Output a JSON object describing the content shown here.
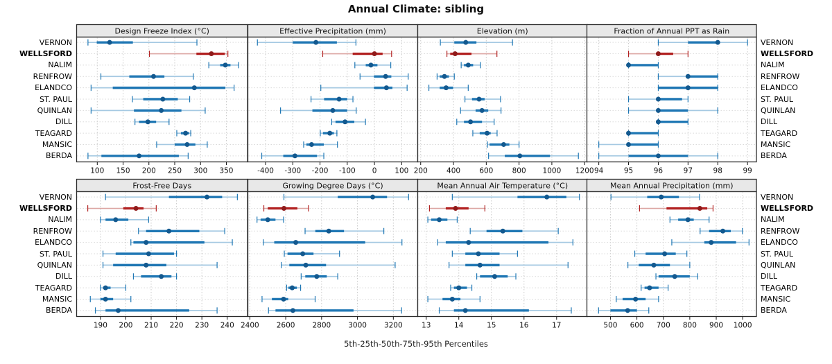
{
  "title": "Annual Climate: sibling",
  "caption": "5th-25th-50th-75th-95th Percentiles",
  "colors": {
    "blue": "#1f77b4",
    "blue_light": "#a5c9e2",
    "blue_dot": "#13598f",
    "red": "#b22222",
    "red_light": "#dba3a0",
    "red_dot": "#8f1a1a",
    "header_bg": "#e8e8e8",
    "panel_border": "#2b2b2b",
    "grid_v": "#c9c9c9",
    "grid_h": "#d9d9d9",
    "tick_text": "#111111"
  },
  "chart_data": {
    "type": "dot-whisker-percentiles",
    "percentiles": [
      5,
      25,
      50,
      75,
      95
    ],
    "highlight_row": "WELLSFORD",
    "rows": [
      "VERNON",
      "WELLSFORD",
      "NALIM",
      "RENFROW",
      "ELANDCO",
      "ST. PAUL",
      "QUINLAN",
      "DILL",
      "TEAGARD",
      "MANSIC",
      "BERDA"
    ],
    "panels": [
      {
        "title": "Design Freeze Index (°C)",
        "xlim": [
          60,
          391
        ],
        "ticks": [
          100,
          150,
          200,
          250,
          300,
          350
        ],
        "values": [
          [
            82,
            99,
            124,
            169,
            293
          ],
          [
            201,
            292,
            321,
            347,
            353
          ],
          [
            316,
            338,
            348,
            358,
            374
          ],
          [
            107,
            162,
            209,
            230,
            286
          ],
          [
            88,
            130,
            288,
            348,
            365
          ],
          [
            168,
            189,
            227,
            256,
            279
          ],
          [
            88,
            171,
            224,
            263,
            309
          ],
          [
            173,
            181,
            198,
            214,
            239
          ],
          [
            254,
            262,
            271,
            278,
            281
          ],
          [
            215,
            250,
            274,
            290,
            313
          ],
          [
            82,
            108,
            181,
            258,
            276
          ]
        ]
      },
      {
        "title": "Effective Precipitation (mm)",
        "xlim": [
          -465,
          159
        ],
        "ticks": [
          -400,
          -300,
          -200,
          -100,
          0,
          100
        ],
        "values": [
          [
            -430,
            -300,
            -215,
            -138,
            -68
          ],
          [
            -190,
            -80,
            0,
            30,
            63
          ],
          [
            -72,
            -32,
            -13,
            11,
            60
          ],
          [
            -53,
            -2,
            41,
            62,
            124
          ],
          [
            -197,
            -2,
            44,
            66,
            120
          ],
          [
            -233,
            -185,
            -130,
            -100,
            -79
          ],
          [
            -345,
            -228,
            -153,
            -100,
            -67
          ],
          [
            -157,
            -143,
            -108,
            -74,
            -33
          ],
          [
            -199,
            -189,
            -164,
            -149,
            -138
          ],
          [
            -260,
            -250,
            -231,
            -186,
            -136
          ],
          [
            -414,
            -335,
            -292,
            -211,
            -186
          ]
        ]
      },
      {
        "title": "Elevation (m)",
        "xlim": [
          182,
          1216
        ],
        "ticks": [
          200,
          400,
          600,
          800,
          1000,
          1200
        ],
        "values": [
          [
            320,
            405,
            475,
            540,
            760
          ],
          [
            360,
            380,
            410,
            510,
            665
          ],
          [
            447,
            464,
            490,
            520,
            565
          ],
          [
            300,
            316,
            345,
            372,
            405
          ],
          [
            250,
            316,
            355,
            398,
            490
          ],
          [
            470,
            513,
            556,
            590,
            687
          ],
          [
            443,
            535,
            574,
            612,
            690
          ],
          [
            420,
            464,
            504,
            574,
            648
          ],
          [
            518,
            560,
            605,
            627,
            666
          ],
          [
            607,
            620,
            706,
            741,
            800
          ],
          [
            614,
            713,
            805,
            989,
            1162
          ]
        ]
      },
      {
        "title": "Fraction of Annual PPT as Rain",
        "xlim": [
          93.6,
          99.3
        ],
        "ticks": [
          94,
          95,
          96,
          97,
          98,
          99
        ],
        "values": [
          [
            96,
            97,
            98,
            98,
            99
          ],
          [
            95,
            96,
            96,
            96.5,
            97
          ],
          [
            95,
            95,
            95,
            96,
            96
          ],
          [
            96,
            97,
            97,
            98,
            98
          ],
          [
            96,
            96,
            97,
            98,
            98
          ],
          [
            95,
            96,
            96,
            96.8,
            97
          ],
          [
            95,
            96,
            96,
            97,
            98
          ],
          [
            96,
            96,
            96,
            97,
            97
          ],
          [
            95,
            95,
            95,
            96,
            96
          ],
          [
            94,
            95,
            95,
            96,
            96
          ],
          [
            94,
            95,
            96,
            97,
            98
          ]
        ]
      },
      {
        "title": "Frost-Free Days",
        "xlim": [
          180.6,
          248
        ],
        "ticks": [
          190,
          200,
          210,
          220,
          230,
          240
        ],
        "values": [
          [
            192,
            217,
            232,
            238,
            244
          ],
          [
            185,
            199,
            204,
            207,
            212
          ],
          [
            190,
            192,
            196,
            201,
            209
          ],
          [
            205,
            208,
            217,
            229,
            239
          ],
          [
            202,
            203,
            208,
            231,
            242
          ],
          [
            191,
            196,
            209,
            219,
            220
          ],
          [
            191,
            195,
            208,
            216,
            236
          ],
          [
            203,
            206,
            214,
            218,
            220
          ],
          [
            190,
            191,
            192,
            194,
            200
          ],
          [
            186,
            190,
            192,
            195,
            202
          ],
          [
            188,
            192,
            197,
            225,
            236
          ]
        ]
      },
      {
        "title": "Growing Degree Days (°C)",
        "xlim": [
          2389,
          3336
        ],
        "ticks": [
          2400,
          2600,
          2800,
          3000,
          3200
        ],
        "values": [
          [
            2590,
            2890,
            3085,
            3165,
            3285
          ],
          [
            2478,
            2500,
            2590,
            2665,
            2727
          ],
          [
            2440,
            2460,
            2500,
            2543,
            2588
          ],
          [
            2708,
            2765,
            2840,
            2925,
            3147
          ],
          [
            2475,
            2536,
            2656,
            3043,
            3248
          ],
          [
            2592,
            2610,
            2695,
            2755,
            2900
          ],
          [
            2575,
            2620,
            2712,
            2825,
            3210
          ],
          [
            2686,
            2709,
            2773,
            2829,
            2890
          ],
          [
            2605,
            2615,
            2636,
            2662,
            2683
          ],
          [
            2468,
            2523,
            2588,
            2614,
            2764
          ],
          [
            2504,
            2543,
            2640,
            2978,
            3246
          ]
        ]
      },
      {
        "title": "Mean Annual Air Temperature (°C)",
        "xlim": [
          12.74,
          17.94
        ],
        "ticks": [
          13,
          14,
          15,
          16,
          17
        ],
        "values": [
          [
            13.8,
            15.8,
            16.7,
            17.3,
            17.7
          ],
          [
            13.1,
            13.6,
            13.9,
            14.3,
            14.8
          ],
          [
            13.05,
            13.15,
            13.4,
            13.65,
            13.95
          ],
          [
            14.35,
            14.85,
            15.35,
            15.95,
            17.05
          ],
          [
            13.35,
            13.6,
            14.3,
            16.75,
            17.5
          ],
          [
            13.8,
            14.2,
            14.6,
            15.25,
            15.8
          ],
          [
            13.7,
            14.2,
            14.65,
            15.25,
            17.35
          ],
          [
            14.55,
            14.65,
            15.1,
            15.5,
            15.75
          ],
          [
            13.75,
            13.85,
            14.0,
            14.25,
            14.4
          ],
          [
            13.05,
            13.5,
            13.8,
            14.05,
            14.65
          ],
          [
            13.4,
            13.85,
            14.2,
            16.15,
            17.45
          ]
        ]
      },
      {
        "title": "Mean Annual Precipitation (mm)",
        "xlim": [
          411,
          1052
        ],
        "ticks": [
          500,
          600,
          700,
          800,
          900,
          1000
        ],
        "values": [
          [
            502,
            639,
            692,
            759,
            837
          ],
          [
            610,
            712,
            838,
            866,
            888
          ],
          [
            725,
            756,
            793,
            815,
            873
          ],
          [
            839,
            873,
            925,
            955,
            999
          ],
          [
            732,
            855,
            881,
            975,
            1024
          ],
          [
            592,
            633,
            705,
            747,
            789
          ],
          [
            566,
            607,
            664,
            725,
            800
          ],
          [
            672,
            682,
            743,
            800,
            830
          ],
          [
            616,
            629,
            648,
            682,
            718
          ],
          [
            522,
            546,
            595,
            633,
            682
          ],
          [
            455,
            500,
            565,
            600,
            645
          ]
        ]
      }
    ]
  }
}
